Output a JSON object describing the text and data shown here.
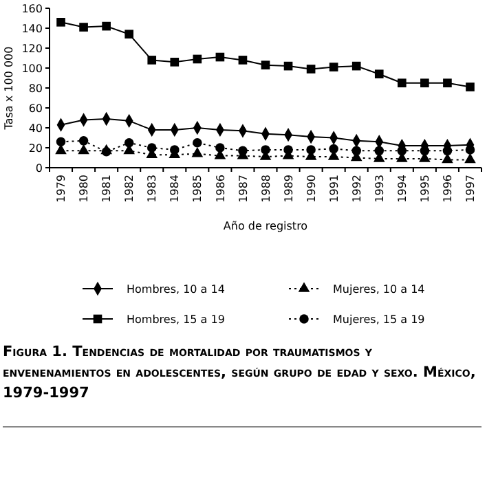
{
  "chart_data": {
    "type": "line",
    "title": "Figura 1. Tendencias de mortalidad por traumatismos y envenenamientos en adolescentes, según grupo de edad y sexo. México, 1979-1997",
    "xlabel": "Año de registro",
    "ylabel": "Tasa x 100 000",
    "categories": [
      "1979",
      "1980",
      "1981",
      "1982",
      "1983",
      "1984",
      "1985",
      "1986",
      "1987",
      "1988",
      "1989",
      "1990",
      "1991",
      "1992",
      "1993",
      "1994",
      "1995",
      "1996",
      "1997"
    ],
    "ylim": [
      0,
      160
    ],
    "yticks": [
      0,
      20,
      40,
      60,
      80,
      100,
      120,
      140,
      160
    ],
    "grid": false,
    "legend": "bottom",
    "series": [
      {
        "name": "Hombres, 10 a 14",
        "color": "#000000",
        "marker": "diamond",
        "line_style": "solid",
        "values": [
          43,
          48,
          49,
          47,
          38,
          38,
          40,
          38,
          37,
          34,
          33,
          31,
          30,
          27,
          26,
          22,
          22,
          22,
          23
        ]
      },
      {
        "name": "Mujeres, 10 a 14",
        "color": "#000000",
        "marker": "triangle",
        "line_style": "dotted",
        "values": [
          17,
          17,
          17,
          17,
          13,
          13,
          14,
          12,
          12,
          11,
          12,
          11,
          11,
          10,
          9,
          9,
          9,
          8,
          8
        ]
      },
      {
        "name": "Hombres, 15 a 19",
        "color": "#000000",
        "marker": "square",
        "line_style": "solid",
        "values": [
          146,
          141,
          142,
          134,
          108,
          106,
          109,
          111,
          108,
          103,
          102,
          99,
          101,
          102,
          94,
          85,
          85,
          85,
          81
        ]
      },
      {
        "name": "Mujeres, 15 a 19",
        "color": "#000000",
        "marker": "circle",
        "line_style": "dotted",
        "values": [
          26,
          27,
          16,
          25,
          20,
          18,
          25,
          20,
          17,
          18,
          18,
          18,
          19,
          17,
          17,
          17,
          17,
          17,
          18
        ]
      }
    ]
  }
}
